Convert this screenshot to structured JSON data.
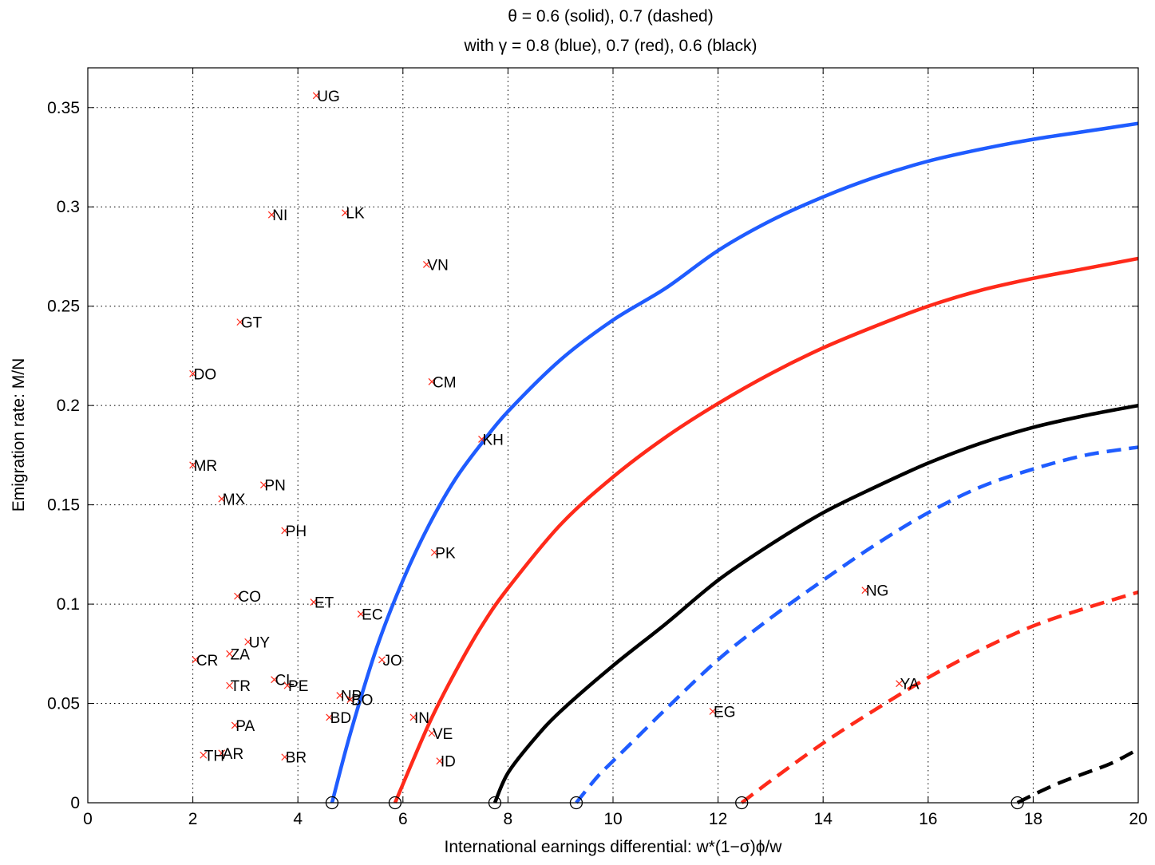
{
  "chart_data": {
    "type": "line",
    "title_line1": "θ = 0.6 (solid), 0.7 (dashed)",
    "title_line2": "with γ = 0.8 (blue), 0.7 (red), 0.6 (black)",
    "xlabel": "International earnings differential: w*(1−σ)ϕ/w",
    "ylabel": "Emigration rate: M/N",
    "xlim": [
      0,
      20
    ],
    "ylim": [
      0,
      0.37
    ],
    "grid": true,
    "xticks": [
      0,
      2,
      4,
      6,
      8,
      10,
      12,
      14,
      16,
      18,
      20
    ],
    "yticks": [
      0,
      0.05,
      0.1,
      0.15,
      0.2,
      0.25,
      0.3,
      0.35
    ],
    "xtick_labels": [
      "0",
      "2",
      "4",
      "6",
      "8",
      "10",
      "12",
      "14",
      "16",
      "18",
      "20"
    ],
    "ytick_labels": [
      "0",
      "0.05",
      "0.1",
      "0.15",
      "0.2",
      "0.25",
      "0.3",
      "0.35"
    ],
    "colors": {
      "blue": "#1f5cff",
      "red": "#ff2a1a",
      "black": "#000000",
      "marker": "#ff2a1a"
    },
    "series": [
      {
        "color": "blue",
        "dash": false,
        "start": 4.65,
        "points": [
          [
            4.65,
            0
          ],
          [
            5,
            0.035
          ],
          [
            5.5,
            0.078
          ],
          [
            6,
            0.112
          ],
          [
            6.5,
            0.14
          ],
          [
            7,
            0.163
          ],
          [
            7.5,
            0.181
          ],
          [
            8,
            0.197
          ],
          [
            9,
            0.223
          ],
          [
            10,
            0.243
          ],
          [
            11,
            0.259
          ],
          [
            12,
            0.278
          ],
          [
            13,
            0.293
          ],
          [
            14,
            0.305
          ],
          [
            15,
            0.315
          ],
          [
            16,
            0.323
          ],
          [
            17,
            0.329
          ],
          [
            18,
            0.334
          ],
          [
            19,
            0.338
          ],
          [
            20,
            0.342
          ]
        ]
      },
      {
        "color": "red",
        "dash": false,
        "start": 5.85,
        "points": [
          [
            5.85,
            0
          ],
          [
            6.5,
            0.04
          ],
          [
            7,
            0.066
          ],
          [
            7.5,
            0.089
          ],
          [
            8,
            0.108
          ],
          [
            9,
            0.14
          ],
          [
            10,
            0.164
          ],
          [
            11,
            0.184
          ],
          [
            12,
            0.201
          ],
          [
            13,
            0.216
          ],
          [
            14,
            0.229
          ],
          [
            15,
            0.24
          ],
          [
            16,
            0.25
          ],
          [
            17,
            0.258
          ],
          [
            18,
            0.264
          ],
          [
            19,
            0.269
          ],
          [
            20,
            0.274
          ]
        ]
      },
      {
        "color": "black",
        "dash": false,
        "start": 7.75,
        "points": [
          [
            7.75,
            0
          ],
          [
            8,
            0.015
          ],
          [
            8.5,
            0.032
          ],
          [
            9,
            0.046
          ],
          [
            10,
            0.069
          ],
          [
            11,
            0.09
          ],
          [
            12,
            0.112
          ],
          [
            13,
            0.13
          ],
          [
            14,
            0.146
          ],
          [
            15,
            0.159
          ],
          [
            16,
            0.171
          ],
          [
            17,
            0.181
          ],
          [
            18,
            0.189
          ],
          [
            19,
            0.195
          ],
          [
            20,
            0.2
          ]
        ]
      },
      {
        "color": "blue",
        "dash": true,
        "start": 9.3,
        "points": [
          [
            9.3,
            0
          ],
          [
            9.7,
            0.013
          ],
          [
            10,
            0.021
          ],
          [
            10.5,
            0.034
          ],
          [
            11,
            0.047
          ],
          [
            12,
            0.072
          ],
          [
            13,
            0.093
          ],
          [
            14,
            0.112
          ],
          [
            15,
            0.13
          ],
          [
            16,
            0.146
          ],
          [
            17,
            0.159
          ],
          [
            18,
            0.168
          ],
          [
            19,
            0.175
          ],
          [
            20,
            0.179
          ]
        ]
      },
      {
        "color": "red",
        "dash": true,
        "start": 12.45,
        "points": [
          [
            12.45,
            0
          ],
          [
            13,
            0.011
          ],
          [
            14,
            0.03
          ],
          [
            15,
            0.047
          ],
          [
            16,
            0.063
          ],
          [
            17,
            0.077
          ],
          [
            18,
            0.089
          ],
          [
            19,
            0.098
          ],
          [
            20,
            0.106
          ]
        ]
      },
      {
        "color": "black",
        "dash": true,
        "start": 17.7,
        "points": [
          [
            17.7,
            0
          ],
          [
            18,
            0.004
          ],
          [
            18.5,
            0.01
          ],
          [
            19,
            0.015
          ],
          [
            19.5,
            0.02
          ],
          [
            20,
            0.027
          ]
        ]
      }
    ],
    "countries": [
      {
        "label": "UG",
        "x": 4.35,
        "y": 0.356
      },
      {
        "label": "NI",
        "x": 3.5,
        "y": 0.296
      },
      {
        "label": "LK",
        "x": 4.9,
        "y": 0.297
      },
      {
        "label": "VN",
        "x": 6.45,
        "y": 0.271
      },
      {
        "label": "GT",
        "x": 2.9,
        "y": 0.242
      },
      {
        "label": "DO",
        "x": 2.0,
        "y": 0.216
      },
      {
        "label": "CM",
        "x": 6.55,
        "y": 0.212
      },
      {
        "label": "KH",
        "x": 7.5,
        "y": 0.183
      },
      {
        "label": "MR",
        "x": 2.0,
        "y": 0.17
      },
      {
        "label": "PN",
        "x": 3.35,
        "y": 0.16
      },
      {
        "label": "MX",
        "x": 2.55,
        "y": 0.153
      },
      {
        "label": "PH",
        "x": 3.75,
        "y": 0.137
      },
      {
        "label": "PK",
        "x": 6.6,
        "y": 0.126
      },
      {
        "label": "NG",
        "x": 14.8,
        "y": 0.107
      },
      {
        "label": "CO",
        "x": 2.85,
        "y": 0.104
      },
      {
        "label": "ET",
        "x": 4.3,
        "y": 0.101
      },
      {
        "label": "EC",
        "x": 5.2,
        "y": 0.095
      },
      {
        "label": "UY",
        "x": 3.05,
        "y": 0.081
      },
      {
        "label": "ZA",
        "x": 2.7,
        "y": 0.075
      },
      {
        "label": "CR",
        "x": 2.05,
        "y": 0.072
      },
      {
        "label": "JO",
        "x": 5.6,
        "y": 0.072
      },
      {
        "label": "CL",
        "x": 3.55,
        "y": 0.062
      },
      {
        "label": "YA",
        "x": 15.45,
        "y": 0.06
      },
      {
        "label": "PE",
        "x": 3.8,
        "y": 0.059
      },
      {
        "label": "TR",
        "x": 2.7,
        "y": 0.059
      },
      {
        "label": "NP",
        "x": 4.8,
        "y": 0.054
      },
      {
        "label": "BO",
        "x": 5.0,
        "y": 0.052
      },
      {
        "label": "EG",
        "x": 11.9,
        "y": 0.046
      },
      {
        "label": "BD",
        "x": 4.6,
        "y": 0.043
      },
      {
        "label": "IN",
        "x": 6.2,
        "y": 0.043
      },
      {
        "label": "PA",
        "x": 2.8,
        "y": 0.039
      },
      {
        "label": "VE",
        "x": 6.55,
        "y": 0.035
      },
      {
        "label": "AR",
        "x": 2.55,
        "y": 0.025
      },
      {
        "label": "TH",
        "x": 2.2,
        "y": 0.024
      },
      {
        "label": "BR",
        "x": 3.75,
        "y": 0.023
      },
      {
        "label": "ID",
        "x": 6.7,
        "y": 0.021
      }
    ]
  }
}
